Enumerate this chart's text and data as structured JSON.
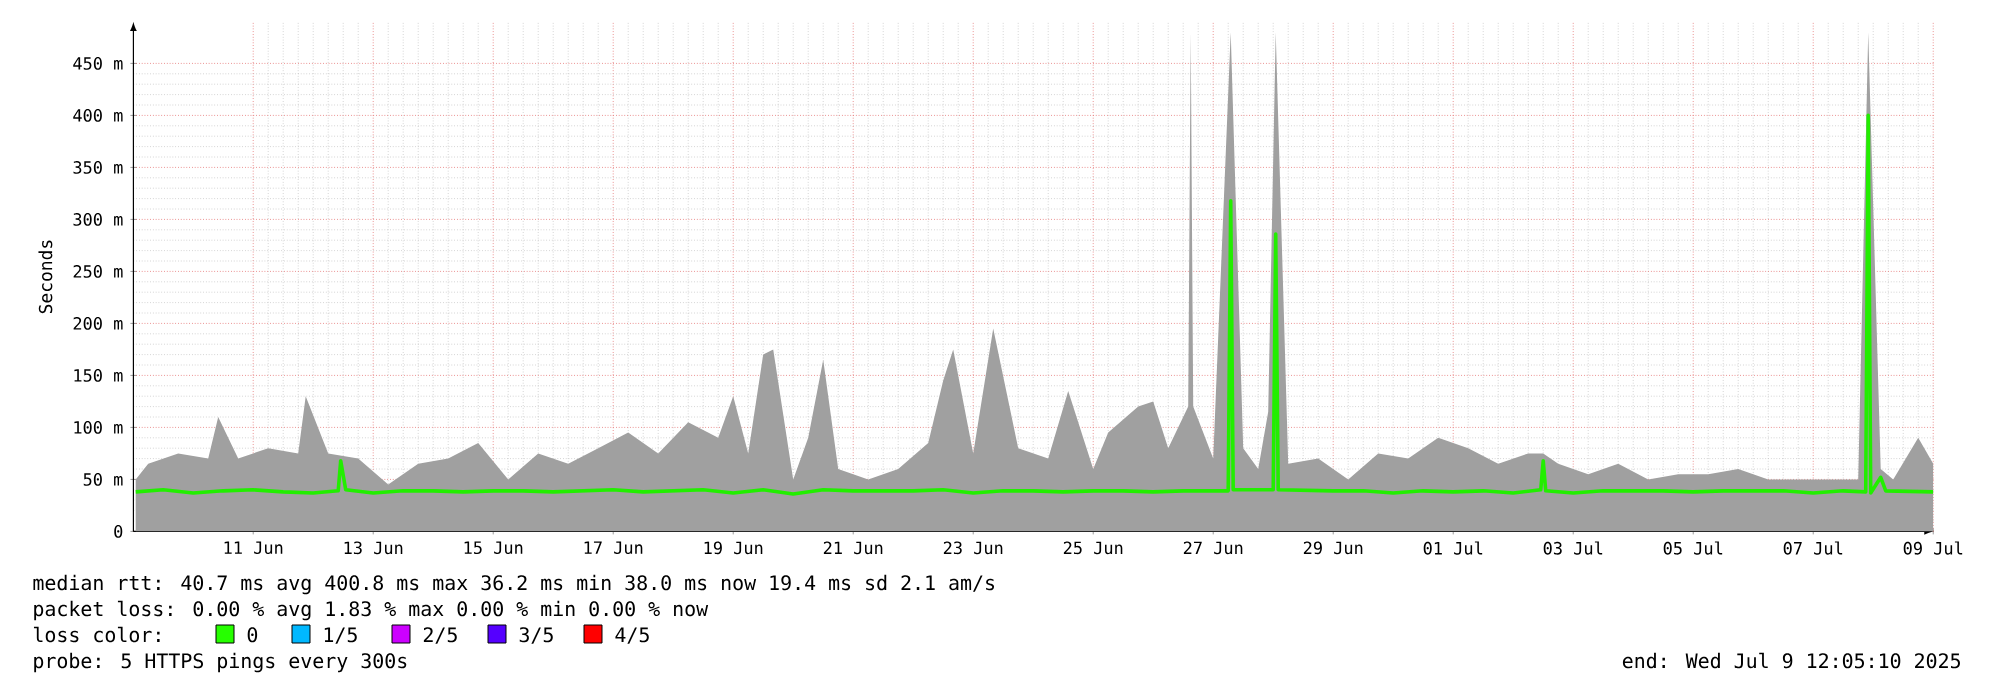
{
  "chart_data": {
    "type": "line",
    "ylabel": "Seconds",
    "xlim": [
      "2025-06-09T12:05",
      "2025-07-09T12:05"
    ],
    "xticks": [
      {
        "value": "2025-06-11T12:00",
        "label": "11 Jun"
      },
      {
        "value": "2025-06-13T12:00",
        "label": "13 Jun"
      },
      {
        "value": "2025-06-15T12:00",
        "label": "15 Jun"
      },
      {
        "value": "2025-06-17T12:00",
        "label": "17 Jun"
      },
      {
        "value": "2025-06-19T12:00",
        "label": "19 Jun"
      },
      {
        "value": "2025-06-21T12:00",
        "label": "21 Jun"
      },
      {
        "value": "2025-06-23T12:00",
        "label": "23 Jun"
      },
      {
        "value": "2025-06-25T12:00",
        "label": "25 Jun"
      },
      {
        "value": "2025-06-27T12:00",
        "label": "27 Jun"
      },
      {
        "value": "2025-06-29T12:00",
        "label": "29 Jun"
      },
      {
        "value": "2025-07-01T12:00",
        "label": "01 Jul"
      },
      {
        "value": "2025-07-03T12:00",
        "label": "03 Jul"
      },
      {
        "value": "2025-07-05T12:00",
        "label": "05 Jul"
      },
      {
        "value": "2025-07-07T12:00",
        "label": "07 Jul"
      },
      {
        "value": "2025-07-09T12:00",
        "label": "09 Jul"
      }
    ],
    "ylim": [
      0,
      490
    ],
    "yticks": [
      0,
      {
        "value": 50,
        "label": "50 m"
      },
      {
        "value": 100,
        "label": "100 m"
      },
      {
        "value": 150,
        "label": "150 m"
      },
      {
        "value": 200,
        "label": "200 m"
      },
      {
        "value": 250,
        "label": "250 m"
      },
      {
        "value": 300,
        "label": "300 m"
      },
      {
        "value": 350,
        "label": "350 m"
      },
      {
        "value": 400,
        "label": "400 m"
      },
      {
        "value": 450,
        "label": "450 m"
      }
    ],
    "grid": true,
    "series": [
      {
        "type": "area",
        "color": "#a0a0a0",
        "x": [
          "2025-06-09T13:00",
          "2025-06-09T18:00",
          "2025-06-10T06:00",
          "2025-06-10T18:00",
          "2025-06-10T22:00",
          "2025-06-11T06:00",
          "2025-06-11T18:00",
          "2025-06-12T06:00",
          "2025-06-12T09:00",
          "2025-06-12T18:00",
          "2025-06-13T06:00",
          "2025-06-13T18:00",
          "2025-06-14T06:00",
          "2025-06-14T18:00",
          "2025-06-15T06:00",
          "2025-06-15T18:00",
          "2025-06-16T06:00",
          "2025-06-16T18:00",
          "2025-06-17T06:00",
          "2025-06-17T18:00",
          "2025-06-18T06:00",
          "2025-06-18T18:00",
          "2025-06-19T06:00",
          "2025-06-19T12:00",
          "2025-06-19T18:00",
          "2025-06-20T00:00",
          "2025-06-20T04:00",
          "2025-06-20T12:00",
          "2025-06-20T18:00",
          "2025-06-21T00:00",
          "2025-06-21T06:00",
          "2025-06-21T18:00",
          "2025-06-22T06:00",
          "2025-06-22T18:00",
          "2025-06-23T00:00",
          "2025-06-23T04:00",
          "2025-06-23T12:00",
          "2025-06-23T20:00",
          "2025-06-24T06:00",
          "2025-06-24T18:00",
          "2025-06-25T02:00",
          "2025-06-25T12:00",
          "2025-06-25T18:00",
          "2025-06-26T06:00",
          "2025-06-26T12:00",
          "2025-06-26T18:00",
          "2025-06-27T02:00",
          "2025-06-27T03:00",
          "2025-06-27T04:00",
          "2025-06-27T12:00",
          "2025-06-27T19:00",
          "2025-06-28T00:00",
          "2025-06-28T06:00",
          "2025-06-28T10:00",
          "2025-06-28T13:00",
          "2025-06-28T18:00",
          "2025-06-29T06:00",
          "2025-06-29T18:00",
          "2025-06-30T06:00",
          "2025-06-30T18:00",
          "2025-07-01T06:00",
          "2025-07-01T18:00",
          "2025-07-02T06:00",
          "2025-07-02T18:00",
          "2025-07-03T00:00",
          "2025-07-03T06:00",
          "2025-07-03T18:00",
          "2025-07-04T06:00",
          "2025-07-04T18:00",
          "2025-07-05T06:00",
          "2025-07-05T18:00",
          "2025-07-06T06:00",
          "2025-07-06T18:00",
          "2025-07-07T06:00",
          "2025-07-07T18:00",
          "2025-07-08T06:00",
          "2025-07-08T10:00",
          "2025-07-08T15:00",
          "2025-07-08T20:00",
          "2025-07-09T06:00",
          "2025-07-09T12:00"
        ],
        "values": [
          50,
          65,
          75,
          70,
          110,
          70,
          80,
          75,
          130,
          75,
          70,
          45,
          65,
          70,
          85,
          50,
          75,
          65,
          80,
          95,
          75,
          105,
          90,
          130,
          75,
          170,
          175,
          50,
          90,
          165,
          60,
          50,
          60,
          85,
          145,
          175,
          75,
          195,
          80,
          70,
          135,
          60,
          95,
          120,
          125,
          80,
          120,
          480,
          120,
          70,
          480,
          80,
          60,
          115,
          480,
          65,
          70,
          50,
          75,
          70,
          90,
          80,
          65,
          75,
          75,
          65,
          55,
          65,
          50,
          55,
          55,
          60,
          50,
          50,
          50,
          50,
          480,
          60,
          50,
          90,
          65
        ]
      },
      {
        "color": "#22ee00",
        "x": [
          "2025-06-09T13:00",
          "2025-06-10T00:00",
          "2025-06-10T12:00",
          "2025-06-11T00:00",
          "2025-06-11T12:00",
          "2025-06-12T00:00",
          "2025-06-12T12:00",
          "2025-06-12T22:00",
          "2025-06-12T23:00",
          "2025-06-13T01:00",
          "2025-06-13T12:00",
          "2025-06-14T00:00",
          "2025-06-14T12:00",
          "2025-06-15T00:00",
          "2025-06-15T12:00",
          "2025-06-16T00:00",
          "2025-06-16T12:00",
          "2025-06-17T00:00",
          "2025-06-17T12:00",
          "2025-06-18T00:00",
          "2025-06-18T12:00",
          "2025-06-19T00:00",
          "2025-06-19T12:00",
          "2025-06-20T00:00",
          "2025-06-20T12:00",
          "2025-06-21T00:00",
          "2025-06-21T12:00",
          "2025-06-22T00:00",
          "2025-06-22T12:00",
          "2025-06-23T00:00",
          "2025-06-23T12:00",
          "2025-06-24T00:00",
          "2025-06-24T12:00",
          "2025-06-25T00:00",
          "2025-06-25T12:00",
          "2025-06-26T00:00",
          "2025-06-26T12:00",
          "2025-06-27T00:00",
          "2025-06-27T18:00",
          "2025-06-27T19:00",
          "2025-06-27T20:00",
          "2025-06-28T12:00",
          "2025-06-28T13:00",
          "2025-06-28T14:00",
          "2025-06-29T12:00",
          "2025-06-30T00:00",
          "2025-06-30T12:00",
          "2025-07-01T00:00",
          "2025-07-01T12:00",
          "2025-07-02T00:00",
          "2025-07-02T12:00",
          "2025-07-02T23:00",
          "2025-07-03T00:00",
          "2025-07-03T01:00",
          "2025-07-03T12:00",
          "2025-07-04T00:00",
          "2025-07-04T12:00",
          "2025-07-05T00:00",
          "2025-07-05T12:00",
          "2025-07-06T00:00",
          "2025-07-06T12:00",
          "2025-07-07T00:00",
          "2025-07-07T12:00",
          "2025-07-08T00:00",
          "2025-07-08T09:00",
          "2025-07-08T10:00",
          "2025-07-08T11:00",
          "2025-07-08T15:00",
          "2025-07-08T17:00",
          "2025-07-09T12:00"
        ],
        "values": [
          38,
          40,
          37,
          39,
          40,
          38,
          37,
          39,
          68,
          40,
          37,
          39,
          39,
          38,
          39,
          39,
          38,
          39,
          40,
          38,
          39,
          40,
          37,
          40,
          36,
          40,
          39,
          39,
          39,
          40,
          37,
          39,
          39,
          38,
          39,
          39,
          38,
          39,
          39,
          318,
          40,
          40,
          286,
          40,
          39,
          39,
          37,
          39,
          38,
          39,
          37,
          40,
          68,
          39,
          37,
          39,
          39,
          39,
          38,
          39,
          39,
          39,
          37,
          39,
          38,
          400,
          37,
          52,
          39,
          38
        ]
      }
    ],
    "annotations": [
      "median rtt:  40.7 ms avg  400.8 ms max  36.2 ms min  38.0 ms now  19.4 ms sd  2.1   am/s",
      "packet loss: 0.00 % avg  1.83 % max  0.00 % min  0.00 % now",
      "loss color:",
      "0",
      "1/5",
      "2/5",
      "3/5",
      "4/5",
      "probe:       5 HTTPS pings every 300s",
      "end: Wed Jul  9 12:05:10 2025"
    ]
  }
}
